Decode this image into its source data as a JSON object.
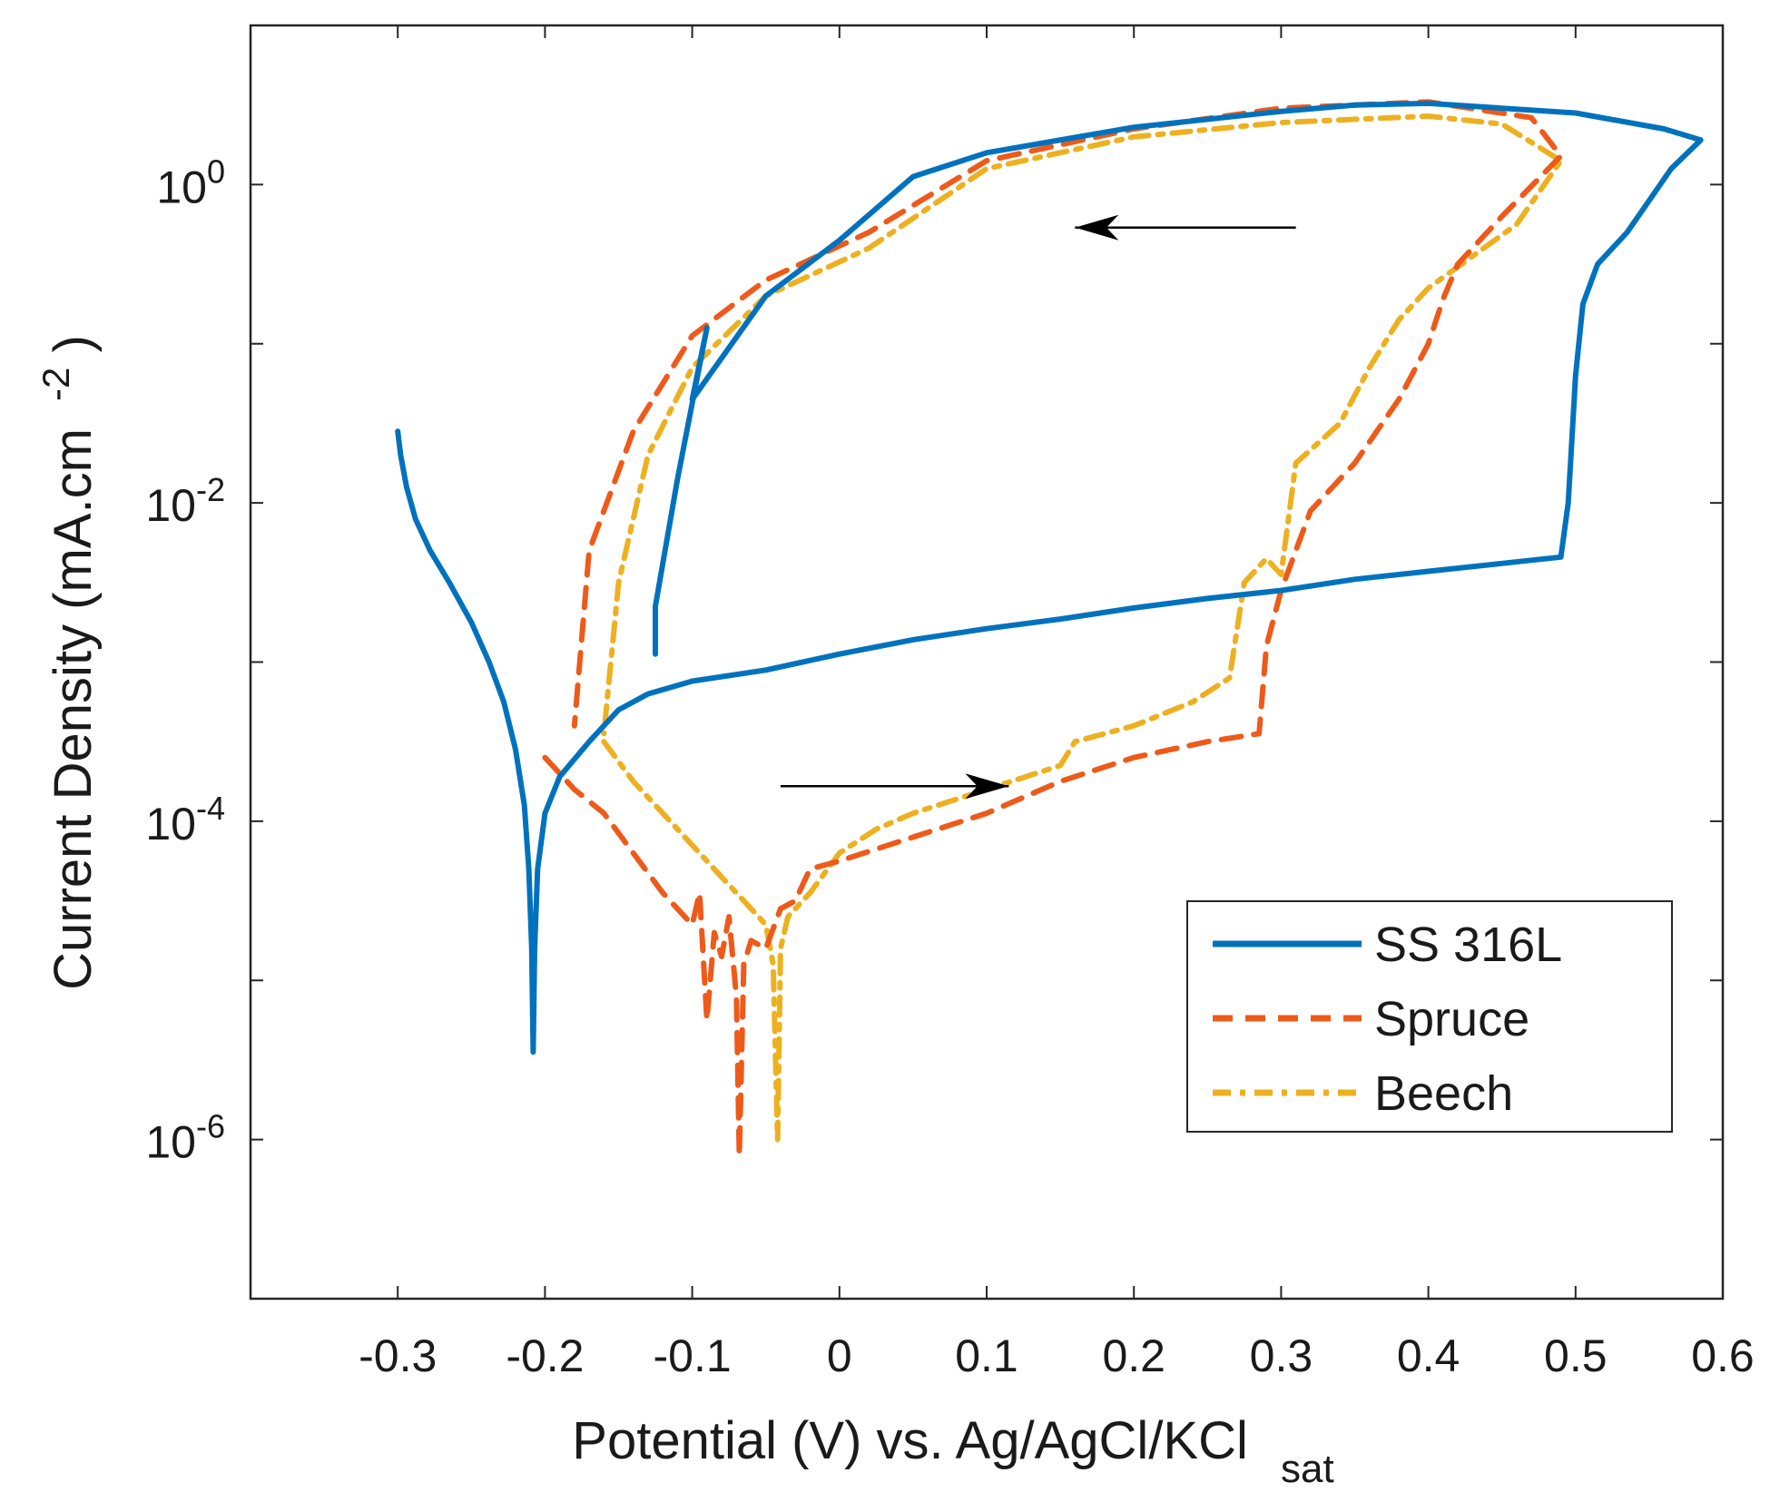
{
  "chart_data": {
    "type": "line",
    "title": "",
    "xlabel": "Potential (V) vs. Ag/AgCl/KCl",
    "xlabel_sub": "sat",
    "ylabel": "Current Density (mA.cm",
    "ylabel_sup": "-2",
    "ylabel_close": ")",
    "xscale": "linear",
    "yscale": "log",
    "xlim": [
      -0.4,
      0.6
    ],
    "ylim_log10": [
      -7,
      1
    ],
    "x_ticks": [
      -0.3,
      -0.2,
      -0.1,
      0,
      0.1,
      0.2,
      0.3,
      0.4,
      0.5,
      0.6
    ],
    "x_tick_labels": [
      "-0.3",
      "-0.2",
      "-0.1",
      "0",
      "0.1",
      "0.2",
      "0.3",
      "0.4",
      "0.5",
      "0.6"
    ],
    "y_tick_labels": [
      {
        "base": "10",
        "exp": "0",
        "log10": 0
      },
      {
        "base": "10",
        "exp": "-2",
        "log10": -2
      },
      {
        "base": "10",
        "exp": "-4",
        "log10": -4
      },
      {
        "base": "10",
        "exp": "-6",
        "log10": -6
      }
    ],
    "grid": false,
    "legend_position": "bottom-right",
    "annotations": [
      {
        "type": "arrow",
        "meaning": "forward scan",
        "from": [
          -0.04,
          -3.78
        ],
        "to": [
          0.115,
          -3.78
        ]
      },
      {
        "type": "arrow",
        "meaning": "reverse scan",
        "from": [
          0.31,
          -0.27
        ],
        "to": [
          0.16,
          -0.27
        ]
      }
    ],
    "series": [
      {
        "name": "SS 316L",
        "color": "#0072BD",
        "style": "solid",
        "points": [
          [
            -0.3,
            -1.55
          ],
          [
            -0.298,
            -1.7
          ],
          [
            -0.294,
            -1.9
          ],
          [
            -0.288,
            -2.1
          ],
          [
            -0.278,
            -2.3
          ],
          [
            -0.265,
            -2.5
          ],
          [
            -0.25,
            -2.75
          ],
          [
            -0.238,
            -3.0
          ],
          [
            -0.228,
            -3.25
          ],
          [
            -0.22,
            -3.55
          ],
          [
            -0.214,
            -3.9
          ],
          [
            -0.211,
            -4.3
          ],
          [
            -0.209,
            -4.8
          ],
          [
            -0.208,
            -5.45
          ],
          [
            -0.207,
            -4.8
          ],
          [
            -0.205,
            -4.3
          ],
          [
            -0.2,
            -3.95
          ],
          [
            -0.19,
            -3.72
          ],
          [
            -0.17,
            -3.5
          ],
          [
            -0.15,
            -3.3
          ],
          [
            -0.13,
            -3.2
          ],
          [
            -0.1,
            -3.12
          ],
          [
            -0.05,
            -3.05
          ],
          [
            0,
            -2.95
          ],
          [
            0.05,
            -2.86
          ],
          [
            0.1,
            -2.79
          ],
          [
            0.15,
            -2.73
          ],
          [
            0.2,
            -2.66
          ],
          [
            0.25,
            -2.6
          ],
          [
            0.3,
            -2.55
          ],
          [
            0.35,
            -2.48
          ],
          [
            0.4,
            -2.43
          ],
          [
            0.45,
            -2.38
          ],
          [
            0.49,
            -2.34
          ],
          [
            0.495,
            -2.0
          ],
          [
            0.5,
            -1.2
          ],
          [
            0.505,
            -0.75
          ],
          [
            0.515,
            -0.5
          ],
          [
            0.535,
            -0.3
          ],
          [
            0.55,
            -0.1
          ],
          [
            0.565,
            0.1
          ],
          [
            0.585,
            0.28
          ],
          [
            0.56,
            0.35
          ],
          [
            0.5,
            0.45
          ],
          [
            0.4,
            0.51
          ],
          [
            0.35,
            0.5
          ],
          [
            0.3,
            0.46
          ],
          [
            0.2,
            0.36
          ],
          [
            0.1,
            0.2
          ],
          [
            0.05,
            0.05
          ],
          [
            0,
            -0.35
          ],
          [
            -0.05,
            -0.7
          ],
          [
            -0.1,
            -1.35
          ],
          [
            -0.09,
            -0.9
          ],
          [
            -0.11,
            -1.85
          ],
          [
            -0.125,
            -2.65
          ],
          [
            -0.125,
            -2.95
          ]
        ]
      },
      {
        "name": "Spruce",
        "color": "#EE5A19",
        "style": "dashed",
        "points": [
          [
            -0.2,
            -3.6
          ],
          [
            -0.18,
            -3.8
          ],
          [
            -0.16,
            -3.95
          ],
          [
            -0.14,
            -4.2
          ],
          [
            -0.12,
            -4.45
          ],
          [
            -0.1,
            -4.65
          ],
          [
            -0.095,
            -4.45
          ],
          [
            -0.09,
            -5.25
          ],
          [
            -0.085,
            -4.7
          ],
          [
            -0.08,
            -4.85
          ],
          [
            -0.075,
            -4.6
          ],
          [
            -0.07,
            -5.1
          ],
          [
            -0.068,
            -6.1
          ],
          [
            -0.065,
            -4.9
          ],
          [
            -0.06,
            -4.75
          ],
          [
            -0.05,
            -4.8
          ],
          [
            -0.04,
            -4.55
          ],
          [
            -0.03,
            -4.5
          ],
          [
            -0.02,
            -4.3
          ],
          [
            0,
            -4.25
          ],
          [
            0.05,
            -4.1
          ],
          [
            0.1,
            -3.95
          ],
          [
            0.15,
            -3.75
          ],
          [
            0.2,
            -3.6
          ],
          [
            0.25,
            -3.5
          ],
          [
            0.285,
            -3.45
          ],
          [
            0.29,
            -2.9
          ],
          [
            0.3,
            -2.55
          ],
          [
            0.32,
            -2.05
          ],
          [
            0.35,
            -1.75
          ],
          [
            0.38,
            -1.35
          ],
          [
            0.4,
            -1.0
          ],
          [
            0.41,
            -0.72
          ],
          [
            0.42,
            -0.5
          ],
          [
            0.45,
            -0.2
          ],
          [
            0.49,
            0.18
          ],
          [
            0.47,
            0.42
          ],
          [
            0.4,
            0.52
          ],
          [
            0.3,
            0.48
          ],
          [
            0.2,
            0.35
          ],
          [
            0.1,
            0.15
          ],
          [
            0.02,
            -0.3
          ],
          [
            -0.05,
            -0.6
          ],
          [
            -0.1,
            -0.95
          ],
          [
            -0.14,
            -1.55
          ],
          [
            -0.17,
            -2.3
          ],
          [
            -0.18,
            -3.4
          ]
        ]
      },
      {
        "name": "Beech",
        "color": "#EDB120",
        "style": "dashdot",
        "points": [
          [
            -0.16,
            -3.5
          ],
          [
            -0.14,
            -3.75
          ],
          [
            -0.12,
            -3.95
          ],
          [
            -0.1,
            -4.15
          ],
          [
            -0.08,
            -4.35
          ],
          [
            -0.07,
            -4.45
          ],
          [
            -0.06,
            -4.55
          ],
          [
            -0.05,
            -4.65
          ],
          [
            -0.045,
            -4.9
          ],
          [
            -0.042,
            -6.0
          ],
          [
            -0.04,
            -4.8
          ],
          [
            -0.035,
            -4.6
          ],
          [
            -0.03,
            -4.55
          ],
          [
            -0.02,
            -4.45
          ],
          [
            0,
            -4.2
          ],
          [
            0.025,
            -4.05
          ],
          [
            0.05,
            -3.95
          ],
          [
            0.1,
            -3.8
          ],
          [
            0.15,
            -3.65
          ],
          [
            0.16,
            -3.5
          ],
          [
            0.2,
            -3.4
          ],
          [
            0.24,
            -3.25
          ],
          [
            0.265,
            -3.1
          ],
          [
            0.27,
            -2.8
          ],
          [
            0.275,
            -2.5
          ],
          [
            0.29,
            -2.35
          ],
          [
            0.3,
            -2.45
          ],
          [
            0.305,
            -2.1
          ],
          [
            0.31,
            -1.75
          ],
          [
            0.34,
            -1.5
          ],
          [
            0.36,
            -1.15
          ],
          [
            0.38,
            -0.85
          ],
          [
            0.4,
            -0.65
          ],
          [
            0.43,
            -0.45
          ],
          [
            0.46,
            -0.25
          ],
          [
            0.49,
            0.15
          ],
          [
            0.45,
            0.38
          ],
          [
            0.4,
            0.43
          ],
          [
            0.3,
            0.39
          ],
          [
            0.2,
            0.3
          ],
          [
            0.1,
            0.1
          ],
          [
            0.02,
            -0.4
          ],
          [
            -0.05,
            -0.7
          ],
          [
            -0.1,
            -1.15
          ],
          [
            -0.13,
            -1.7
          ],
          [
            -0.15,
            -2.5
          ],
          [
            -0.16,
            -3.45
          ]
        ]
      }
    ]
  }
}
